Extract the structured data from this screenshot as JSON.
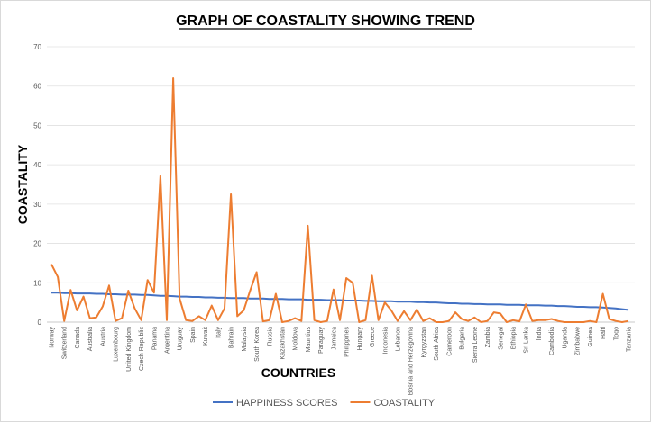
{
  "chart_data": {
    "type": "line",
    "title": "GRAPH OF COASTALITY SHOWING TREND",
    "x_label": "COUNTRIES",
    "y_label": "COASTALITY",
    "categories": [
      "Norway",
      null,
      "Switzerland",
      null,
      "Canada",
      null,
      "Australia",
      null,
      "Austria",
      null,
      "Luxembourg",
      null,
      "United Kingdom",
      null,
      "Czech Republic",
      null,
      "Panama",
      null,
      "Argentina",
      null,
      "Uruguay",
      null,
      "Spain",
      null,
      "Kuwait",
      null,
      "Italy",
      null,
      "Bahrain",
      null,
      "Malaysia",
      null,
      "South Korea",
      null,
      "Russia",
      null,
      "Kazakhstan",
      null,
      "Moldova",
      null,
      "Mauritius",
      null,
      "Paraguay",
      null,
      "Jamaica",
      null,
      "Philippines",
      null,
      "Hungary",
      null,
      "Greece",
      null,
      "Indonesia",
      null,
      "Lebanon",
      null,
      "Bosnia and Herzegovina",
      null,
      "Kyrgyzstan",
      null,
      "South Africa",
      null,
      "Cameroon",
      null,
      "Bulgaria",
      null,
      "Sierra Leone",
      null,
      "Zambia",
      null,
      "Senegal",
      null,
      "Ethiopia",
      null,
      "Sri Lanka",
      null,
      "India",
      null,
      "Cambodia",
      null,
      "Uganda",
      null,
      "Zimbabwe",
      null,
      "Guinea",
      null,
      "Haiti",
      null,
      "Togo",
      null,
      "Tanzania"
    ],
    "series": [
      {
        "name": "HAPPINESS SCORES",
        "color": "#4472c4",
        "values": [
          7.5,
          7.5,
          7.4,
          7.4,
          7.3,
          7.3,
          7.3,
          7.2,
          7.2,
          7.1,
          7.1,
          7.0,
          7.0,
          7.0,
          6.9,
          6.9,
          6.8,
          6.7,
          6.7,
          6.6,
          6.5,
          6.5,
          6.4,
          6.4,
          6.3,
          6.3,
          6.2,
          6.2,
          6.1,
          6.1,
          6.1,
          6.0,
          6.0,
          6.0,
          5.9,
          5.9,
          5.9,
          5.8,
          5.8,
          5.8,
          5.7,
          5.7,
          5.7,
          5.6,
          5.6,
          5.6,
          5.5,
          5.5,
          5.5,
          5.4,
          5.4,
          5.3,
          5.3,
          5.3,
          5.2,
          5.2,
          5.2,
          5.1,
          5.1,
          5.0,
          5.0,
          4.9,
          4.8,
          4.8,
          4.7,
          4.7,
          4.6,
          4.6,
          4.5,
          4.5,
          4.5,
          4.4,
          4.4,
          4.4,
          4.3,
          4.3,
          4.3,
          4.2,
          4.2,
          4.1,
          4.1,
          4.0,
          3.9,
          3.9,
          3.8,
          3.8,
          3.7,
          3.6,
          3.5,
          3.3,
          3.1
        ]
      },
      {
        "name": "COASTALITY",
        "color": "#ed7d31",
        "values": [
          14.7,
          11.5,
          0.3,
          8.2,
          3,
          6.5,
          1,
          1.2,
          4,
          9.3,
          0.3,
          1,
          8,
          3.5,
          0.5,
          10.7,
          7.5,
          37.2,
          0.5,
          62,
          6,
          0.5,
          0.3,
          1.5,
          0.5,
          4.2,
          0.5,
          3.5,
          32.5,
          1.5,
          3,
          8,
          12.7,
          0.2,
          0.5,
          7.2,
          0,
          0.3,
          1,
          0.3,
          24.5,
          0.5,
          0,
          0.3,
          8.3,
          0.5,
          11.2,
          10,
          0,
          0.5,
          11.8,
          0.5,
          5,
          3,
          0.3,
          2.8,
          0.5,
          3.2,
          0.3,
          1,
          0,
          0,
          0.3,
          2.5,
          0.8,
          0.3,
          1.2,
          0,
          0.3,
          2.5,
          2.2,
          0,
          0.5,
          0.2,
          4.5,
          0.3,
          0.5,
          0.5,
          0.8,
          0.3,
          0,
          0,
          0,
          0,
          0.3,
          0,
          7.2,
          0.8,
          0.3,
          0,
          0.3
        ]
      }
    ],
    "ylim": [
      0,
      70
    ],
    "yticks": [
      0,
      10,
      20,
      30,
      40,
      50,
      60,
      70
    ],
    "grid": true
  }
}
